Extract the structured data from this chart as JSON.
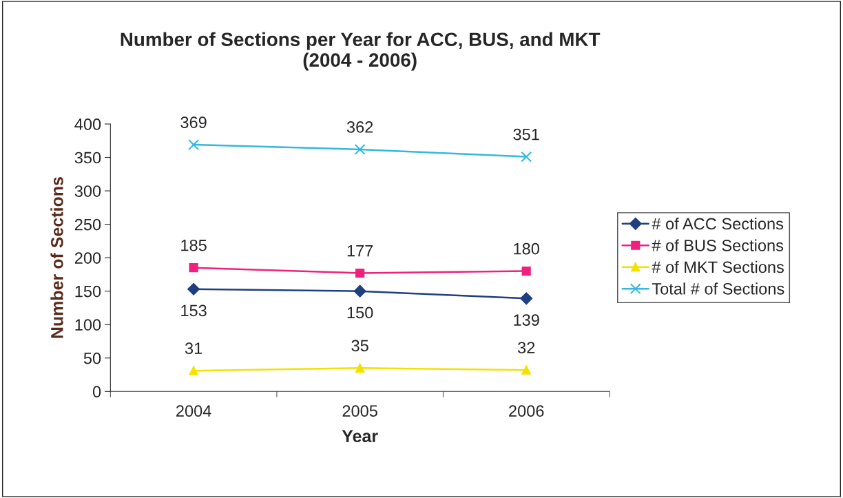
{
  "chart_data": {
    "type": "line",
    "title": "Number of Sections per Year for ACC, BUS, and MKT\n(2004 - 2006)",
    "xlabel": "Year",
    "ylabel": "Number of Sections",
    "categories": [
      "2004",
      "2005",
      "2006"
    ],
    "series": [
      {
        "name": "# of ACC Sections",
        "color": "#1f3f80",
        "marker": "diamond",
        "values": [
          153,
          150,
          139
        ]
      },
      {
        "name": "# of BUS Sections",
        "color": "#f0207f",
        "marker": "square",
        "values": [
          185,
          177,
          180
        ]
      },
      {
        "name": "# of MKT Sections",
        "color": "#f2e200",
        "marker": "triangle",
        "values": [
          31,
          35,
          32
        ]
      },
      {
        "name": "Total # of Sections",
        "color": "#33b8e0",
        "marker": "cross",
        "values": [
          369,
          362,
          351
        ]
      }
    ],
    "ylim": [
      0,
      400
    ],
    "yticks": [
      0,
      50,
      100,
      150,
      200,
      250,
      300,
      350,
      400
    ],
    "data_labels": true,
    "legend": "right",
    "grid": false
  }
}
